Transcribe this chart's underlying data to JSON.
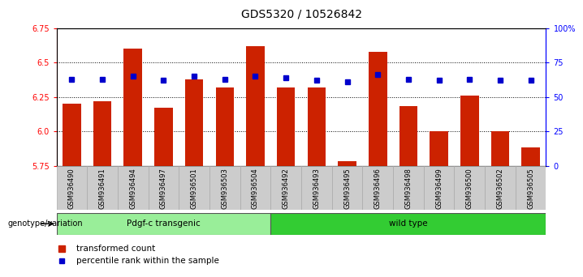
{
  "title": "GDS5320 / 10526842",
  "samples": [
    "GSM936490",
    "GSM936491",
    "GSM936494",
    "GSM936497",
    "GSM936501",
    "GSM936503",
    "GSM936504",
    "GSM936492",
    "GSM936493",
    "GSM936495",
    "GSM936496",
    "GSM936498",
    "GSM936499",
    "GSM936500",
    "GSM936502",
    "GSM936505"
  ],
  "bar_values": [
    6.2,
    6.22,
    6.6,
    6.17,
    6.38,
    6.32,
    6.62,
    6.32,
    6.32,
    5.78,
    6.58,
    6.18,
    6.0,
    6.26,
    6.0,
    5.88
  ],
  "percentile_values": [
    63,
    63,
    65,
    62,
    65,
    63,
    65,
    64,
    62,
    61,
    66,
    63,
    62,
    63,
    62,
    62
  ],
  "ylim_left": [
    5.75,
    6.75
  ],
  "ylim_right": [
    0,
    100
  ],
  "yticks_left": [
    5.75,
    6.0,
    6.25,
    6.5,
    6.75
  ],
  "yticks_right": [
    0,
    25,
    50,
    75,
    100
  ],
  "ytick_labels_right": [
    "0",
    "25",
    "50",
    "75",
    "100%"
  ],
  "bar_color": "#cc2200",
  "marker_color": "#0000cc",
  "group1_label": "Pdgf-c transgenic",
  "group2_label": "wild type",
  "group1_count": 7,
  "group2_count": 9,
  "group1_color": "#99ee99",
  "group2_color": "#33cc33",
  "xlabel_left": "genotype/variation",
  "legend1": "transformed count",
  "legend2": "percentile rank within the sample",
  "background_plot": "#ffffff",
  "xtick_bg": "#cccccc",
  "title_fontsize": 10,
  "tick_fontsize": 7,
  "sample_fontsize": 6
}
